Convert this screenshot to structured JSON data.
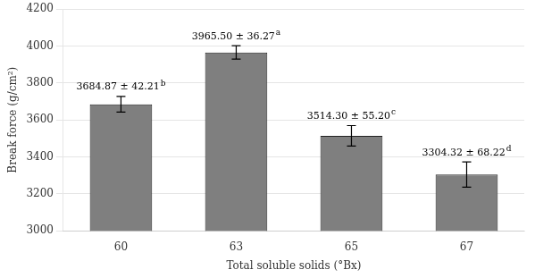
{
  "chart_data": {
    "type": "bar",
    "categories": [
      "60",
      "63",
      "65",
      "67"
    ],
    "values": [
      3684.87,
      3965.5,
      3514.3,
      3304.32
    ],
    "errors": [
      42.21,
      36.27,
      55.2,
      68.22
    ],
    "data_labels": true,
    "value_labels": [
      "3684.87 ± 42.21",
      "3965.50 ± 36.27",
      "3514.30 ± 55.20",
      "3304.32 ± 68.22"
    ],
    "annotations": [
      "b",
      "a",
      "c",
      "d"
    ],
    "color": "#7f7f7f",
    "xlabel": "Total soluble solids (°Bx)",
    "ylabel": "Break force (g/cm²)",
    "ylim": [
      3000,
      4200
    ],
    "yticks": [
      3000,
      3200,
      3400,
      3600,
      3800,
      4000,
      4200
    ],
    "grid": true
  }
}
